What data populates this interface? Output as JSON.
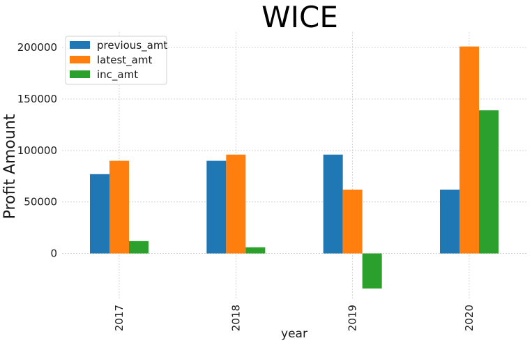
{
  "chart_data": {
    "type": "bar",
    "title": "WICE",
    "xlabel": "year",
    "ylabel": "Profit Amount",
    "categories": [
      "2017",
      "2018",
      "2019",
      "2020"
    ],
    "ylim": [
      -45000,
      215000
    ],
    "yticks": [
      0,
      50000,
      100000,
      150000,
      200000
    ],
    "grid": true,
    "legend_position": "top-left",
    "series": [
      {
        "name": "previous_amt",
        "color": "#1f77b4",
        "values": [
          77000,
          90000,
          96000,
          62000
        ]
      },
      {
        "name": "latest_amt",
        "color": "#ff7f0e",
        "values": [
          90000,
          96000,
          62000,
          201000
        ]
      },
      {
        "name": "inc_amt",
        "color": "#2ca02c",
        "values": [
          12000,
          6000,
          -34000,
          139000
        ]
      }
    ]
  }
}
